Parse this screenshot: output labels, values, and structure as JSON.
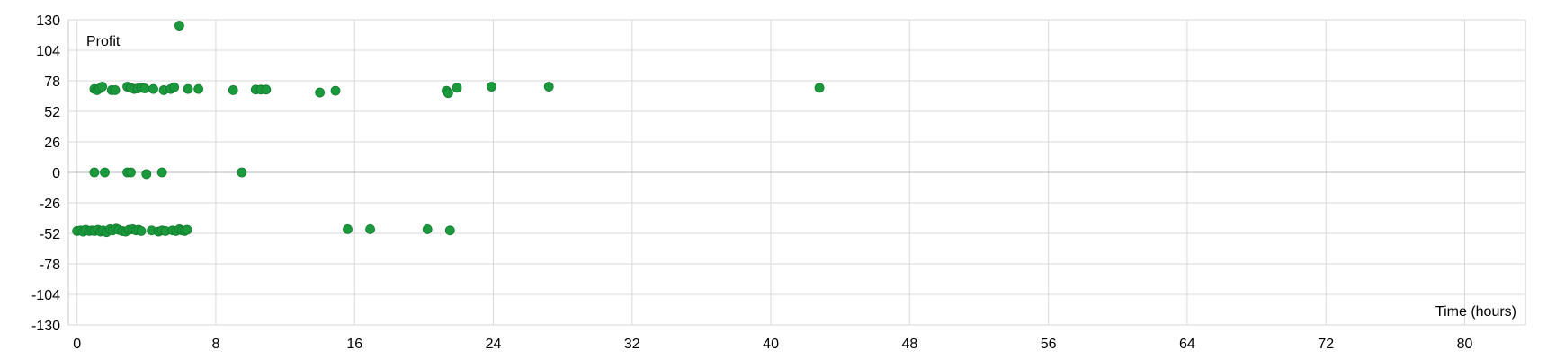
{
  "chart_data": {
    "type": "scatter",
    "title": "",
    "xlabel": "Time (hours)",
    "ylabel": "Profit",
    "xlim": [
      -0.5,
      83.5
    ],
    "ylim": [
      -130,
      130
    ],
    "xticks": [
      0,
      8,
      16,
      24,
      32,
      40,
      48,
      56,
      64,
      72,
      80
    ],
    "yticks": [
      130,
      104,
      78,
      52,
      26,
      0,
      -26,
      -52,
      -78,
      -104,
      -130
    ],
    "grid": true,
    "legend": "none",
    "series": [
      {
        "color": "#1a9a3c",
        "points": [
          [
            0.0,
            -50
          ],
          [
            0.2,
            -49.5
          ],
          [
            0.35,
            -50.5
          ],
          [
            0.5,
            -49
          ],
          [
            0.7,
            -50
          ],
          [
            0.85,
            -49.5
          ],
          [
            1.0,
            -50
          ],
          [
            1.2,
            -49
          ],
          [
            1.35,
            -50.5
          ],
          [
            1.5,
            -49.5
          ],
          [
            1.7,
            -51
          ],
          [
            1.9,
            -48.5
          ],
          [
            2.05,
            -49.5
          ],
          [
            2.25,
            -48
          ],
          [
            2.4,
            -49
          ],
          [
            2.6,
            -50
          ],
          [
            2.8,
            -50.5
          ],
          [
            3.0,
            -49
          ],
          [
            3.2,
            -48.5
          ],
          [
            3.4,
            -49.5
          ],
          [
            3.55,
            -49
          ],
          [
            3.7,
            -50
          ],
          [
            4.3,
            -49.5
          ],
          [
            4.7,
            -50.5
          ],
          [
            4.9,
            -49.5
          ],
          [
            5.1,
            -50
          ],
          [
            5.5,
            -49.5
          ],
          [
            5.7,
            -50
          ],
          [
            5.9,
            -48.5
          ],
          [
            6.05,
            -49.5
          ],
          [
            6.2,
            -50
          ],
          [
            6.35,
            -49
          ],
          [
            15.6,
            -48.5
          ],
          [
            16.9,
            -48.5
          ],
          [
            20.2,
            -48.5
          ],
          [
            21.5,
            -49.5
          ],
          [
            1.0,
            0
          ],
          [
            1.6,
            0
          ],
          [
            2.9,
            0
          ],
          [
            3.1,
            0
          ],
          [
            4.0,
            -1.5
          ],
          [
            4.9,
            0
          ],
          [
            9.5,
            0
          ],
          [
            1.0,
            71
          ],
          [
            1.15,
            70
          ],
          [
            1.3,
            71.5
          ],
          [
            1.45,
            73
          ],
          [
            2.0,
            70
          ],
          [
            2.2,
            70
          ],
          [
            2.9,
            73
          ],
          [
            3.1,
            72
          ],
          [
            3.3,
            71
          ],
          [
            3.5,
            71.5
          ],
          [
            3.7,
            72
          ],
          [
            3.9,
            71.5
          ],
          [
            4.4,
            71
          ],
          [
            5.0,
            70
          ],
          [
            5.4,
            71
          ],
          [
            5.6,
            72.5
          ],
          [
            6.4,
            71
          ],
          [
            7.0,
            71
          ],
          [
            9.0,
            70
          ],
          [
            10.3,
            70.5
          ],
          [
            10.6,
            70.5
          ],
          [
            10.9,
            70.5
          ],
          [
            14.0,
            68
          ],
          [
            14.9,
            69.5
          ],
          [
            21.3,
            69.5
          ],
          [
            21.4,
            67.5
          ],
          [
            21.9,
            72
          ],
          [
            23.9,
            73
          ],
          [
            27.2,
            73
          ],
          [
            42.8,
            72
          ],
          [
            5.9,
            125
          ]
        ]
      }
    ]
  }
}
